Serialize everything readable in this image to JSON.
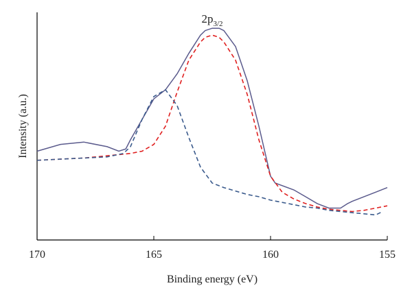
{
  "chart_data": {
    "type": "line",
    "xlabel": "Binding energy (eV)",
    "ylabel": "Intensity (a.u.)",
    "xlim": [
      170,
      155
    ],
    "ylim": [
      0,
      1
    ],
    "x_ticks": [
      "170",
      "165",
      "160",
      "155"
    ],
    "x_reversed": true,
    "y_ticks_shown": false,
    "grid": false,
    "legend": "none",
    "annotation": {
      "main": "2p",
      "sub": "3/2",
      "x": 162.5,
      "y": 0.9
    },
    "series": [
      {
        "color": "#5a5a8c",
        "style": "solid",
        "x": [
          170,
          169,
          168,
          167,
          166.5,
          166.2,
          166,
          165.5,
          165,
          164.5,
          164,
          163.5,
          163,
          162.8,
          162.5,
          162.2,
          162,
          161.5,
          161,
          160.5,
          160,
          159.8,
          159,
          158.5,
          158,
          157.5,
          157,
          156.7,
          156.5,
          156,
          155.5,
          155
        ],
        "y": [
          0.39,
          0.42,
          0.43,
          0.41,
          0.39,
          0.4,
          0.44,
          0.53,
          0.62,
          0.66,
          0.73,
          0.82,
          0.9,
          0.92,
          0.93,
          0.93,
          0.92,
          0.85,
          0.7,
          0.5,
          0.28,
          0.25,
          0.22,
          0.19,
          0.16,
          0.14,
          0.14,
          0.16,
          0.17,
          0.19,
          0.21,
          0.23
        ]
      },
      {
        "color": "#e02020",
        "style": "dashed",
        "x": [
          170,
          169,
          168,
          167,
          166.5,
          166,
          165.5,
          165,
          164.5,
          164,
          163.5,
          163,
          162.8,
          162.5,
          162.2,
          162,
          161.5,
          161,
          160.5,
          160,
          159.5,
          159,
          158.5,
          158,
          157.5,
          157,
          156.5,
          156,
          155.5,
          155
        ],
        "y": [
          0.35,
          0.355,
          0.36,
          0.37,
          0.375,
          0.38,
          0.39,
          0.42,
          0.5,
          0.65,
          0.79,
          0.87,
          0.89,
          0.9,
          0.89,
          0.87,
          0.79,
          0.64,
          0.44,
          0.28,
          0.21,
          0.18,
          0.16,
          0.145,
          0.135,
          0.13,
          0.125,
          0.13,
          0.14,
          0.15
        ]
      },
      {
        "color": "#3a5a8c",
        "style": "dashed",
        "x": [
          170,
          169,
          168,
          167,
          166.3,
          166,
          165.5,
          165,
          164.5,
          164,
          163.5,
          163,
          162.5,
          162,
          161.5,
          161,
          160.5,
          160,
          159.5,
          159,
          158.5,
          158,
          157.5,
          157,
          156.5,
          156,
          155.5,
          155.2
        ],
        "y": [
          0.35,
          0.355,
          0.36,
          0.365,
          0.38,
          0.41,
          0.53,
          0.63,
          0.66,
          0.59,
          0.45,
          0.32,
          0.25,
          0.23,
          0.215,
          0.2,
          0.19,
          0.175,
          0.165,
          0.155,
          0.145,
          0.14,
          0.13,
          0.125,
          0.12,
          0.115,
          0.11,
          0.125
        ]
      }
    ]
  }
}
